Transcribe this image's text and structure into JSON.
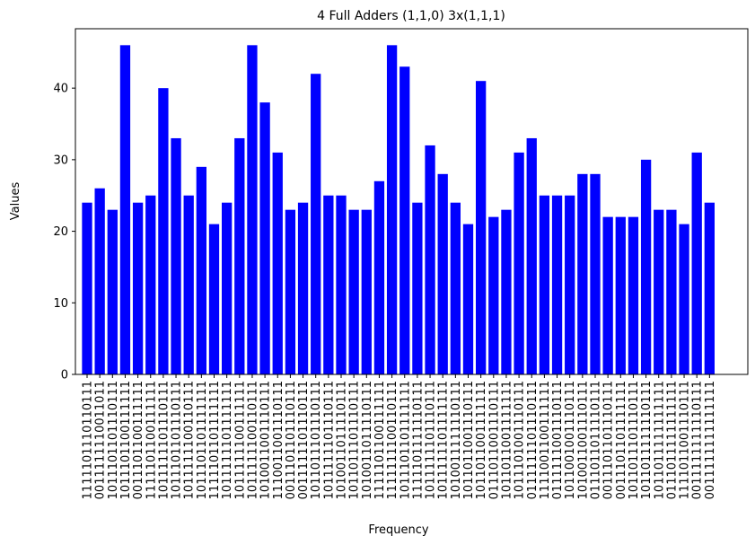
{
  "chart_data": {
    "type": "bar",
    "title": "4 Full Adders (1,1,0) 3x(1,1,1)",
    "x_label": "Frequency",
    "y_label": "Values",
    "color": "#0000ff",
    "categories": [
      "1111101110110111",
      "0011111110011011",
      "1011101101110111",
      "1011101100111111",
      "0011101100111111",
      "1111101100111111",
      "1011111101110111",
      "1011101101110111",
      "1011111100110111",
      "1011101101111111",
      "1111101101111111",
      "1011111101111111",
      "1011111100111111",
      "1011111100110111",
      "1010011001110111",
      "1110011001110111",
      "0011101101110111",
      "0011111101110111",
      "1011011101110111",
      "1011111101110111",
      "1010011011110111",
      "1011011101110111",
      "1010011011110111",
      "1111101100111111",
      "1111111100110111",
      "1011101101111111",
      "1111101111110111",
      "1011111101110111",
      "1011111101111111",
      "1010011111110111",
      "1011011001110111",
      "1011011001111111",
      "0111011001110111",
      "1011011001111111",
      "1011101001110111",
      "0111111101110111",
      "1111001100111111",
      "0111111001110111",
      "1011001001110111",
      "1010011001110111",
      "0111011011110111",
      "0011101101110111",
      "0011101101111111",
      "1011011101110111",
      "1011011111110111",
      "1011011111111111",
      "0111011111111111",
      "1111011001110111",
      "0011111111110111",
      "0011111111111111"
    ],
    "values": [
      24,
      26,
      23,
      46,
      24,
      25,
      40,
      33,
      25,
      29,
      21,
      24,
      33,
      46,
      38,
      31,
      23,
      24,
      42,
      25,
      25,
      23,
      23,
      27,
      46,
      43,
      24,
      32,
      28,
      24,
      21,
      41,
      22,
      23,
      31,
      33,
      25,
      25,
      25,
      28,
      28,
      22,
      22,
      22,
      30,
      23,
      23,
      21,
      31,
      24
    ],
    "ylim": [
      0,
      48.3
    ],
    "yticks": [
      0,
      10,
      20,
      30,
      40
    ]
  }
}
